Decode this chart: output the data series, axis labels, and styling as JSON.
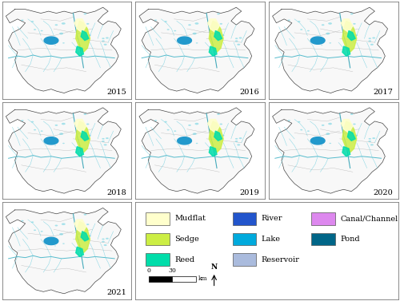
{
  "years": [
    "2015",
    "2016",
    "2017",
    "2018",
    "2019",
    "2020",
    "2021"
  ],
  "legend_items": [
    {
      "label": "Mudflat",
      "color": "#FFFFCC"
    },
    {
      "label": "Sedge",
      "color": "#CCEE44"
    },
    {
      "label": "Reed",
      "color": "#00DDAA"
    },
    {
      "label": "River",
      "color": "#2255CC"
    },
    {
      "label": "Lake",
      "color": "#00AADD"
    },
    {
      "label": "Reservoir",
      "color": "#AABBDD"
    },
    {
      "label": "Canal/Channel",
      "color": "#DD88EE"
    },
    {
      "label": "Pond",
      "color": "#006688"
    }
  ],
  "background_color": "#ffffff",
  "border_color": "#999999",
  "year_fontsize": 7,
  "legend_fontsize": 7
}
